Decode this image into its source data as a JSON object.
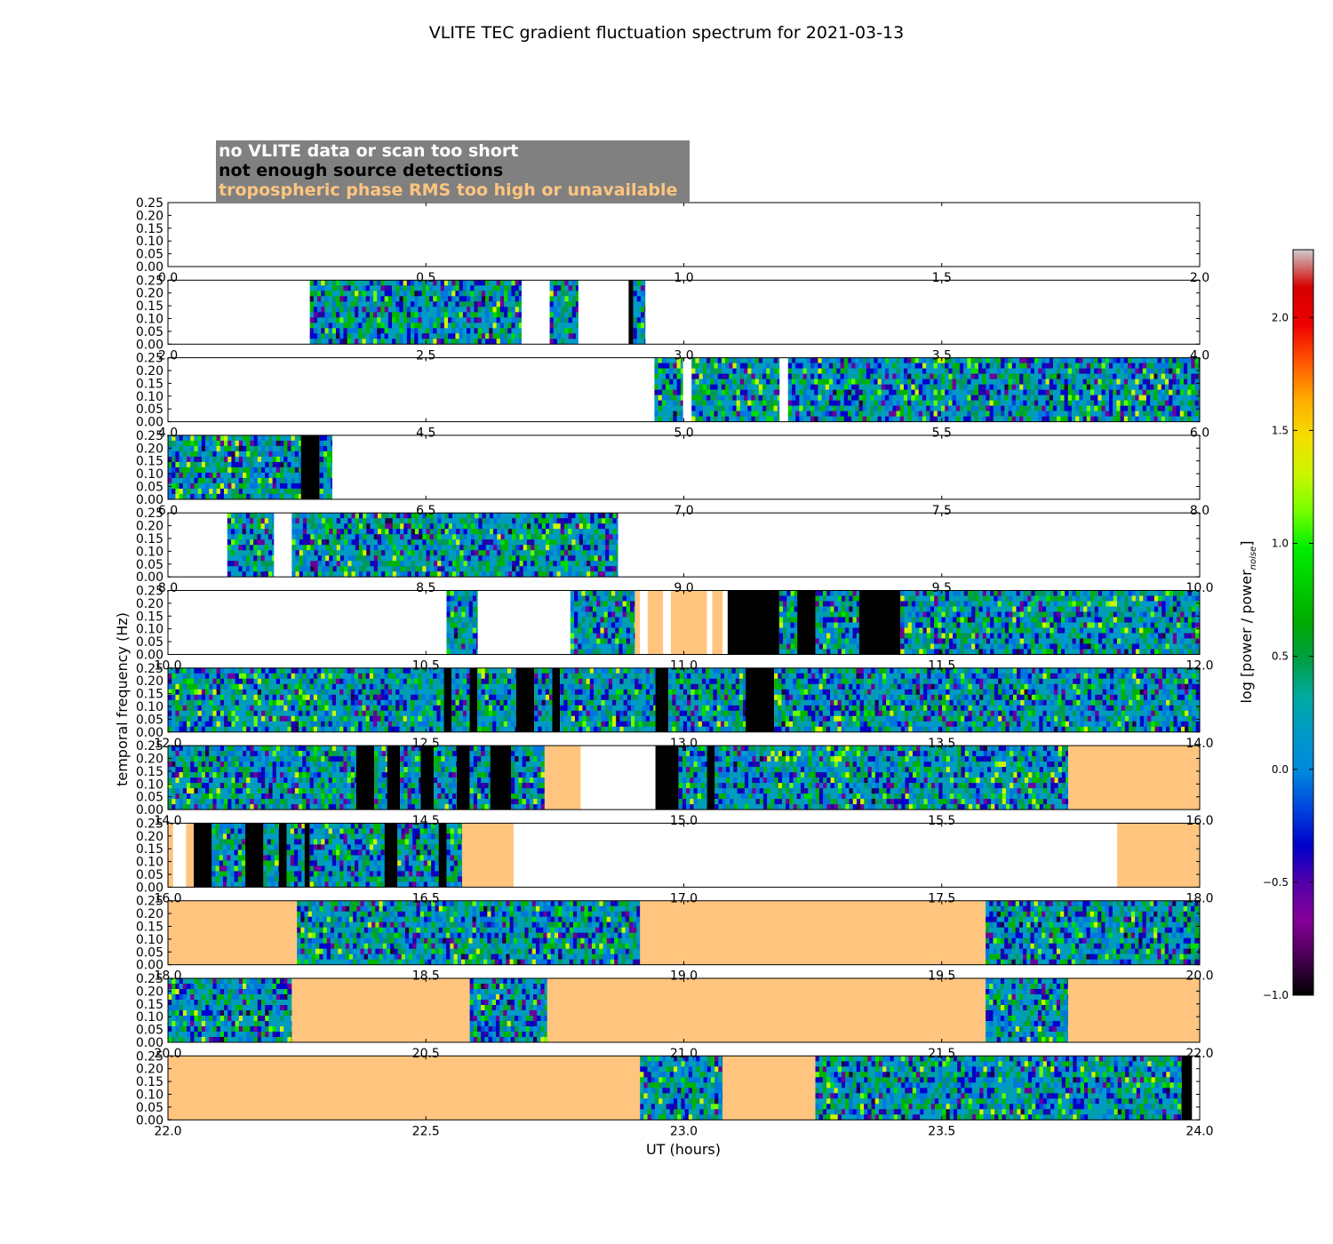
{
  "chart_data": {
    "type": "heatmap",
    "title": "VLITE TEC gradient fluctuation spectrum for 2021-03-13",
    "xlabel": "UT (hours)",
    "ylabel": "temporal frequency (Hz)",
    "colorbar_label": "log [power / power",
    "colorbar_label_subscript": "noise",
    "colorbar_range": [
      -1.0,
      2.3
    ],
    "colorbar_ticks": [
      "−1.0",
      "−0.5",
      "0.0",
      "0.5",
      "1.0",
      "1.5",
      "2.0"
    ],
    "colormap": "nipy_spectral",
    "y_ticks": [
      "0.00",
      "0.05",
      "0.10",
      "0.15",
      "0.20",
      "0.25"
    ],
    "ylim": [
      0,
      0.25
    ],
    "legend": [
      {
        "label": "no VLITE data or scan too short",
        "color": "#ffffff"
      },
      {
        "label": "not enough source detections",
        "color": "#000000"
      },
      {
        "label": "tropospheric phase RMS too high or unavailable",
        "color": "#ffc57f"
      }
    ],
    "legend_background": "#808080",
    "colors": {
      "no_data": "#ffffff",
      "few_detections": "#000000",
      "tropo_rms": "#ffc57f"
    },
    "panels": [
      {
        "x_ticks": [
          "0.0",
          "0.5",
          "1.0",
          "1.5",
          "2.0"
        ],
        "xlim": [
          0,
          2
        ],
        "segments": []
      },
      {
        "x_ticks": [
          "2.0",
          "2.5",
          "3.0",
          "3.5",
          "4.0"
        ],
        "xlim": [
          2,
          4
        ],
        "segments": [
          {
            "start": 2.275,
            "end": 2.685,
            "kind": "data"
          },
          {
            "start": 2.74,
            "end": 2.795,
            "kind": "data"
          },
          {
            "start": 2.893,
            "end": 2.902,
            "kind": "few_detections"
          },
          {
            "start": 2.902,
            "end": 2.925,
            "kind": "data"
          }
        ]
      },
      {
        "x_ticks": [
          "4.0",
          "4.5",
          "5.0",
          "5.5",
          "6.0"
        ],
        "xlim": [
          4,
          6
        ],
        "segments": [
          {
            "start": 4.943,
            "end": 4.998,
            "kind": "data"
          },
          {
            "start": 5.015,
            "end": 5.185,
            "kind": "data"
          },
          {
            "start": 5.202,
            "end": 6.0,
            "kind": "data"
          }
        ]
      },
      {
        "x_ticks": [
          "6.0",
          "6.5",
          "7.0",
          "7.5",
          "8.0"
        ],
        "xlim": [
          6,
          8
        ],
        "segments": [
          {
            "start": 6.0,
            "end": 6.258,
            "kind": "data"
          },
          {
            "start": 6.258,
            "end": 6.294,
            "kind": "few_detections"
          },
          {
            "start": 6.294,
            "end": 6.318,
            "kind": "data"
          }
        ]
      },
      {
        "x_ticks": [
          "8.0",
          "8.5",
          "9.0",
          "9.5",
          "10.0"
        ],
        "xlim": [
          8,
          10
        ],
        "segments": [
          {
            "start": 8.115,
            "end": 8.205,
            "kind": "data"
          },
          {
            "start": 8.24,
            "end": 8.872,
            "kind": "data"
          }
        ]
      },
      {
        "x_ticks": [
          "8.0",
          "8.5",
          "9.0",
          "9.5",
          "10.0"
        ],
        "xlim": [
          8,
          10
        ],
        "segments": [
          {
            "start": 8.54,
            "end": 8.6,
            "kind": "data"
          },
          {
            "start": 8.78,
            "end": 8.905,
            "kind": "data"
          },
          {
            "start": 8.905,
            "end": 8.915,
            "kind": "tropo_rms"
          },
          {
            "start": 8.915,
            "end": 8.93,
            "kind": "no_data"
          },
          {
            "start": 8.93,
            "end": 8.96,
            "kind": "tropo_rms"
          },
          {
            "start": 8.96,
            "end": 8.975,
            "kind": "no_data"
          },
          {
            "start": 8.975,
            "end": 9.045,
            "kind": "tropo_rms"
          },
          {
            "start": 9.045,
            "end": 9.055,
            "kind": "no_data"
          },
          {
            "start": 9.055,
            "end": 9.075,
            "kind": "tropo_rms"
          },
          {
            "start": 9.075,
            "end": 9.085,
            "kind": "no_data"
          },
          {
            "start": 9.085,
            "end": 9.185,
            "kind": "few_detections"
          },
          {
            "start": 9.185,
            "end": 9.22,
            "kind": "data"
          },
          {
            "start": 9.22,
            "end": 9.255,
            "kind": "few_detections"
          },
          {
            "start": 9.255,
            "end": 9.34,
            "kind": "data"
          },
          {
            "start": 9.34,
            "end": 9.42,
            "kind": "few_detections"
          },
          {
            "start": 9.42,
            "end": 10.0,
            "kind": "data"
          }
        ]
      },
      {
        "x_ticks": [
          "10.0",
          "10.5",
          "11.0",
          "11.5",
          "12.0"
        ],
        "xlim": [
          10,
          12
        ],
        "segments": [
          {
            "start": 10.0,
            "end": 10.535,
            "kind": "data"
          },
          {
            "start": 10.535,
            "end": 10.55,
            "kind": "few_detections"
          },
          {
            "start": 10.55,
            "end": 10.585,
            "kind": "data"
          },
          {
            "start": 10.585,
            "end": 10.6,
            "kind": "few_detections"
          },
          {
            "start": 10.6,
            "end": 10.675,
            "kind": "data"
          },
          {
            "start": 10.675,
            "end": 10.71,
            "kind": "few_detections"
          },
          {
            "start": 10.71,
            "end": 10.745,
            "kind": "data"
          },
          {
            "start": 10.745,
            "end": 10.76,
            "kind": "few_detections"
          },
          {
            "start": 10.76,
            "end": 10.945,
            "kind": "data"
          },
          {
            "start": 10.945,
            "end": 10.97,
            "kind": "few_detections"
          },
          {
            "start": 10.97,
            "end": 11.12,
            "kind": "data"
          },
          {
            "start": 11.12,
            "end": 11.175,
            "kind": "few_detections"
          },
          {
            "start": 11.175,
            "end": 12.0,
            "kind": "data"
          }
        ]
      },
      {
        "x_ticks": [
          "12.0",
          "12.5",
          "13.0",
          "13.5",
          "14.0"
        ],
        "xlim": [
          12,
          14
        ],
        "segments": [
          {
            "start": 12.0,
            "end": 12.365,
            "kind": "data"
          },
          {
            "start": 12.365,
            "end": 12.4,
            "kind": "few_detections"
          },
          {
            "start": 12.4,
            "end": 12.425,
            "kind": "data"
          },
          {
            "start": 12.425,
            "end": 12.45,
            "kind": "few_detections"
          },
          {
            "start": 12.45,
            "end": 12.49,
            "kind": "data"
          },
          {
            "start": 12.49,
            "end": 12.515,
            "kind": "few_detections"
          },
          {
            "start": 12.515,
            "end": 12.56,
            "kind": "data"
          },
          {
            "start": 12.56,
            "end": 12.585,
            "kind": "few_detections"
          },
          {
            "start": 12.585,
            "end": 12.625,
            "kind": "data"
          },
          {
            "start": 12.625,
            "end": 12.665,
            "kind": "few_detections"
          },
          {
            "start": 12.665,
            "end": 12.73,
            "kind": "data"
          },
          {
            "start": 12.73,
            "end": 12.8,
            "kind": "tropo_rms"
          },
          {
            "start": 12.945,
            "end": 12.99,
            "kind": "few_detections"
          },
          {
            "start": 12.99,
            "end": 13.045,
            "kind": "data"
          },
          {
            "start": 13.045,
            "end": 13.06,
            "kind": "few_detections"
          },
          {
            "start": 13.06,
            "end": 13.745,
            "kind": "data"
          },
          {
            "start": 13.745,
            "end": 14.0,
            "kind": "tropo_rms"
          }
        ]
      },
      {
        "x_ticks": [
          "14.0",
          "14.5",
          "15.0",
          "15.5",
          "16.0"
        ],
        "xlim": [
          14,
          16
        ],
        "segments": [
          {
            "start": 14.0,
            "end": 14.01,
            "kind": "tropo_rms"
          },
          {
            "start": 14.035,
            "end": 14.05,
            "kind": "tropo_rms"
          },
          {
            "start": 14.05,
            "end": 14.085,
            "kind": "few_detections"
          },
          {
            "start": 14.085,
            "end": 14.15,
            "kind": "data"
          },
          {
            "start": 14.15,
            "end": 14.185,
            "kind": "few_detections"
          },
          {
            "start": 14.185,
            "end": 14.215,
            "kind": "data"
          },
          {
            "start": 14.215,
            "end": 14.23,
            "kind": "few_detections"
          },
          {
            "start": 14.23,
            "end": 14.265,
            "kind": "data"
          },
          {
            "start": 14.265,
            "end": 14.275,
            "kind": "few_detections"
          },
          {
            "start": 14.275,
            "end": 14.42,
            "kind": "data"
          },
          {
            "start": 14.42,
            "end": 14.445,
            "kind": "few_detections"
          },
          {
            "start": 14.445,
            "end": 14.525,
            "kind": "data"
          },
          {
            "start": 14.525,
            "end": 14.54,
            "kind": "few_detections"
          },
          {
            "start": 14.54,
            "end": 14.57,
            "kind": "data"
          },
          {
            "start": 14.57,
            "end": 14.67,
            "kind": "tropo_rms"
          },
          {
            "start": 15.84,
            "end": 16.0,
            "kind": "tropo_rms"
          }
        ]
      },
      {
        "x_ticks": [
          "16.0",
          "16.5",
          "17.0",
          "17.5",
          "18.0"
        ],
        "xlim": [
          16,
          18
        ],
        "segments": [
          {
            "start": 16.0,
            "end": 16.25,
            "kind": "tropo_rms"
          },
          {
            "start": 16.25,
            "end": 16.915,
            "kind": "data"
          },
          {
            "start": 16.915,
            "end": 17.585,
            "kind": "tropo_rms"
          },
          {
            "start": 17.585,
            "end": 18.0,
            "kind": "data"
          }
        ]
      },
      {
        "x_ticks": [
          "18.0",
          "18.5",
          "19.0",
          "19.5",
          "20.0"
        ],
        "xlim": [
          18,
          20
        ],
        "segments": [
          {
            "start": 18.0,
            "end": 18.24,
            "kind": "data"
          },
          {
            "start": 18.24,
            "end": 18.585,
            "kind": "tropo_rms"
          },
          {
            "start": 18.585,
            "end": 18.735,
            "kind": "data"
          },
          {
            "start": 18.735,
            "end": 19.585,
            "kind": "tropo_rms"
          },
          {
            "start": 19.585,
            "end": 19.745,
            "kind": "data"
          },
          {
            "start": 19.745,
            "end": 20.0,
            "kind": "tropo_rms"
          }
        ]
      },
      {
        "x_ticks": [
          "22.0",
          "22.5",
          "23.0",
          "23.5",
          "24.0"
        ],
        "xlim": [
          22,
          24
        ],
        "segments": [
          {
            "start": 22.0,
            "end": 22.915,
            "kind": "tropo_rms"
          },
          {
            "start": 22.915,
            "end": 23.075,
            "kind": "data"
          },
          {
            "start": 23.075,
            "end": 23.255,
            "kind": "tropo_rms"
          },
          {
            "start": 23.255,
            "end": 23.965,
            "kind": "data"
          },
          {
            "start": 23.965,
            "end": 23.985,
            "kind": "few_detections"
          }
        ]
      }
    ],
    "overlap_tick_labels": [
      {
        "below_panel": 0,
        "ticks": [
          "0.0",
          "0.5",
          "1.0",
          "1.5",
          "2.0"
        ]
      },
      {
        "below_panel": 1,
        "ticks": [
          "2.0",
          "2.5",
          "3.0",
          "3.5",
          "4.0"
        ]
      },
      {
        "below_panel": 2,
        "ticks": [
          "4.0",
          "4.5",
          "5.0",
          "5.5",
          "6.0"
        ]
      },
      {
        "below_panel": 3,
        "ticks": [
          "6.0",
          "6.5",
          "7.0",
          "7.5",
          "8.0"
        ]
      },
      {
        "below_panel": 4,
        "ticks": [
          "8.0",
          "8.5",
          "9.0",
          "9.5",
          "10.0"
        ]
      },
      {
        "below_panel": 5,
        "ticks": [
          "10.0",
          "10.5",
          "11.0",
          "11.5",
          "12.0"
        ]
      },
      {
        "below_panel": 6,
        "ticks": [
          "12.0",
          "12.5",
          "13.0",
          "13.5",
          "14.0"
        ]
      },
      {
        "below_panel": 7,
        "ticks": [
          "14.0",
          "14.5",
          "15.0",
          "15.5",
          "16.0"
        ]
      },
      {
        "below_panel": 8,
        "ticks": [
          "16.0",
          "16.5",
          "17.0",
          "17.5",
          "18.0"
        ]
      },
      {
        "below_panel": 9,
        "ticks": [
          "18.0",
          "18.5",
          "19.0",
          "19.5",
          "20.0"
        ]
      },
      {
        "below_panel": 10,
        "ticks": [
          "20.0",
          "20.5",
          "21.0",
          "21.5",
          "22.0"
        ]
      },
      {
        "below_panel": 11,
        "ticks": [
          "22.0",
          "22.5",
          "23.0",
          "23.5",
          "24.0"
        ]
      }
    ]
  }
}
